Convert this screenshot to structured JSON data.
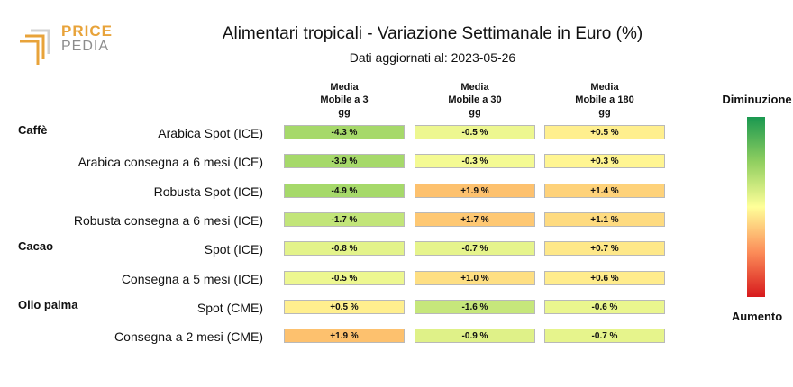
{
  "logo": {
    "line1": "PRICE",
    "line2": "PEDIA"
  },
  "colors": {
    "negative_strong": "#a6d96a",
    "neutral": "#ffff99",
    "positive_strong": "#fdae61"
  },
  "chart_data": {
    "type": "table",
    "title": "Alimentari tropicali - Variazione Settimanale in Euro (%)",
    "subtitle": "Dati aggiornati al: 2023-05-26",
    "columns": [
      {
        "l1": "Media",
        "l2": "Mobile a 3",
        "l3": "gg"
      },
      {
        "l1": "Media",
        "l2": "Mobile a 30",
        "l3": "gg"
      },
      {
        "l1": "Media",
        "l2": "Mobile a 180",
        "l3": "gg"
      }
    ],
    "rows": [
      {
        "group": "Caffè",
        "label": "Arabica Spot (ICE)",
        "values": [
          -4.3,
          -0.5,
          0.5
        ],
        "texts": [
          "-4.3 %",
          "-0.5 %",
          "+0.5 %"
        ]
      },
      {
        "group": "",
        "label": "Arabica consegna a 6 mesi (ICE)",
        "values": [
          -3.9,
          -0.3,
          0.3
        ],
        "texts": [
          "-3.9 %",
          "-0.3 %",
          "+0.3 %"
        ]
      },
      {
        "group": "",
        "label": "Robusta Spot (ICE)",
        "values": [
          -4.9,
          1.9,
          1.4
        ],
        "texts": [
          "-4.9 %",
          "+1.9 %",
          "+1.4 %"
        ]
      },
      {
        "group": "",
        "label": "Robusta consegna a 6 mesi (ICE)",
        "values": [
          -1.7,
          1.7,
          1.1
        ],
        "texts": [
          "-1.7 %",
          "+1.7 %",
          "+1.1 %"
        ]
      },
      {
        "group": "Cacao",
        "label": "Spot (ICE)",
        "values": [
          -0.8,
          -0.7,
          0.7
        ],
        "texts": [
          "-0.8 %",
          "-0.7 %",
          "+0.7 %"
        ]
      },
      {
        "group": "",
        "label": "Consegna a 5 mesi (ICE)",
        "values": [
          -0.5,
          1.0,
          0.6
        ],
        "texts": [
          "-0.5 %",
          "+1.0 %",
          "+0.6 %"
        ]
      },
      {
        "group": "Olio palma",
        "label": "Spot (CME)",
        "values": [
          0.5,
          -1.6,
          -0.6
        ],
        "texts": [
          "+0.5 %",
          "-1.6 %",
          "-0.6 %"
        ]
      },
      {
        "group": "",
        "label": "Consegna a 2 mesi (CME)",
        "values": [
          1.9,
          -0.9,
          -0.7
        ],
        "texts": [
          "+1.9 %",
          "-0.9 %",
          "-0.7 %"
        ]
      }
    ],
    "legend": {
      "top": "Diminuzione",
      "bottom": "Aumento"
    }
  }
}
